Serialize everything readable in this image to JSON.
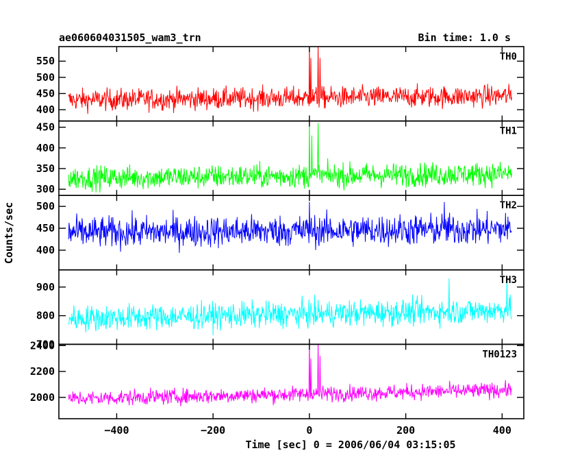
{
  "header": {
    "title": "ae060604031505_wam3_trn",
    "bin_time": "Bin time: 1.0 s"
  },
  "chart_data": {
    "type": "line",
    "xlabel": "Time [sec] 0 = 2006/06/04 03:15:05",
    "ylabel": "Counts/sec",
    "xlim": [
      -520,
      445
    ],
    "x_ticks": [
      -400,
      -200,
      0,
      200,
      400
    ],
    "x_tick_labels": [
      "−400",
      "−200",
      "0",
      "200",
      "400"
    ],
    "data_range": [
      -500,
      420
    ],
    "bin_time_s": 1.0,
    "panels": [
      {
        "name": "TH0",
        "color": "#ff0000",
        "ylim": [
          365,
          595
        ],
        "y_ticks": [
          400,
          450,
          500,
          550
        ],
        "y_tick_labels": [
          "400",
          "450",
          "500",
          "550"
        ],
        "base": 430,
        "slope": 0.03,
        "noise": 28,
        "spikes": [
          {
            "t": 0,
            "v": 600
          },
          {
            "t": 3,
            "v": 560
          },
          {
            "t": 18,
            "v": 600
          },
          {
            "t": 22,
            "v": 560
          }
        ]
      },
      {
        "name": "TH1",
        "color": "#00ff00",
        "ylim": [
          285,
          465
        ],
        "y_ticks": [
          300,
          350,
          400,
          450
        ],
        "y_tick_labels": [
          "300",
          "350",
          "400",
          "450"
        ],
        "base": 327,
        "slope": 0.025,
        "noise": 24,
        "spikes": [
          {
            "t": 0,
            "v": 462
          },
          {
            "t": 5,
            "v": 430
          },
          {
            "t": 18,
            "v": 460
          }
        ]
      },
      {
        "name": "TH2",
        "color": "#0000ff",
        "ylim": [
          355,
          525
        ],
        "y_ticks": [
          400,
          450,
          500
        ],
        "y_tick_labels": [
          "400",
          "450",
          "500"
        ],
        "base": 440,
        "slope": 0.02,
        "noise": 30,
        "spikes": [
          {
            "t": 0,
            "v": 510
          },
          {
            "t": 280,
            "v": 510
          }
        ]
      },
      {
        "name": "TH3",
        "color": "#00ffff",
        "ylim": [
          700,
          960
        ],
        "y_ticks": [
          700,
          800,
          900
        ],
        "y_tick_labels": [
          "700",
          "800",
          "900"
        ],
        "base": 790,
        "slope": 0.07,
        "noise": 38,
        "spikes": [
          {
            "t": 290,
            "v": 930
          },
          {
            "t": 410,
            "v": 935
          }
        ]
      },
      {
        "name": "TH0123",
        "color": "#ff00ff",
        "ylim": [
          1835,
          2410
        ],
        "y_ticks": [
          2000,
          2200,
          2400
        ],
        "y_tick_labels": [
          "2000",
          "2200",
          "2400"
        ],
        "base": 1990,
        "slope": 0.16,
        "noise": 50,
        "spikes": [
          {
            "t": 0,
            "v": 2440
          },
          {
            "t": 3,
            "v": 2300
          },
          {
            "t": 18,
            "v": 2440
          },
          {
            "t": 22,
            "v": 2320
          }
        ]
      }
    ]
  }
}
